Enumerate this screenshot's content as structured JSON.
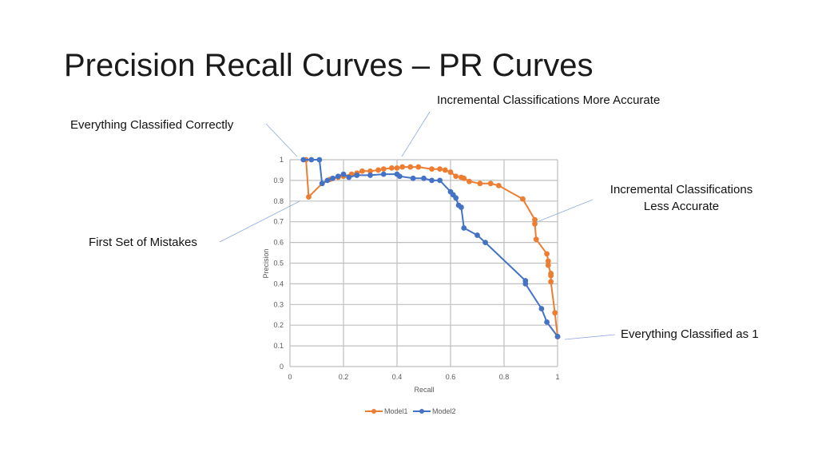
{
  "slide": {
    "title": "Precision Recall Curves – PR Curves"
  },
  "annotations": {
    "top_center": "Incremental Classifications More Accurate",
    "top_left": "Everything Classified Correctly",
    "right_line1": "Incremental Classifications",
    "right_line2": "Less Accurate",
    "left_mid": "First Set of Mistakes",
    "bottom_right": "Everything Classified as 1"
  },
  "colors": {
    "model1": "#ED7D31",
    "model2": "#4472C4",
    "grid": "#BFBFBF",
    "callout": "#8EA9DB"
  },
  "chart_data": {
    "type": "line",
    "title": "",
    "xlabel": "Recall",
    "ylabel": "Precision",
    "xlim": [
      0,
      1
    ],
    "ylim": [
      0,
      1
    ],
    "xticks": [
      "0",
      "0.2",
      "0.4",
      "0.6",
      "0.8",
      "1"
    ],
    "yticks": [
      "0",
      "0.1",
      "0.2",
      "0.3",
      "0.4",
      "0.5",
      "0.6",
      "0.7",
      "0.8",
      "0.9",
      "1"
    ],
    "grid": true,
    "legend_position": "bottom",
    "series": [
      {
        "name": "Model1",
        "color": "#ED7D31",
        "x": [
          0.06,
          0.07,
          0.12,
          0.15,
          0.18,
          0.2,
          0.23,
          0.25,
          0.27,
          0.3,
          0.33,
          0.35,
          0.38,
          0.4,
          0.42,
          0.45,
          0.48,
          0.53,
          0.56,
          0.58,
          0.6,
          0.62,
          0.64,
          0.65,
          0.67,
          0.71,
          0.75,
          0.78,
          0.87,
          0.915,
          0.915,
          0.92,
          0.96,
          0.965,
          0.965,
          0.975,
          0.975,
          0.975,
          0.99,
          1.0
        ],
        "y": [
          1.0,
          0.82,
          0.885,
          0.905,
          0.915,
          0.92,
          0.93,
          0.935,
          0.945,
          0.945,
          0.95,
          0.955,
          0.96,
          0.96,
          0.965,
          0.965,
          0.965,
          0.955,
          0.955,
          0.95,
          0.94,
          0.92,
          0.915,
          0.91,
          0.895,
          0.885,
          0.885,
          0.875,
          0.81,
          0.71,
          0.69,
          0.615,
          0.545,
          0.51,
          0.49,
          0.45,
          0.44,
          0.41,
          0.26,
          0.145
        ]
      },
      {
        "name": "Model2",
        "color": "#4472C4",
        "x": [
          0.05,
          0.08,
          0.11,
          0.12,
          0.14,
          0.16,
          0.18,
          0.2,
          0.22,
          0.25,
          0.3,
          0.35,
          0.4,
          0.41,
          0.46,
          0.5,
          0.53,
          0.56,
          0.6,
          0.61,
          0.62,
          0.63,
          0.64,
          0.65,
          0.7,
          0.73,
          0.88,
          0.88,
          0.94,
          0.96,
          1.0
        ],
        "y": [
          1.0,
          1.0,
          1.0,
          0.885,
          0.9,
          0.91,
          0.92,
          0.93,
          0.915,
          0.925,
          0.925,
          0.93,
          0.93,
          0.92,
          0.91,
          0.91,
          0.9,
          0.9,
          0.845,
          0.83,
          0.815,
          0.78,
          0.77,
          0.67,
          0.635,
          0.6,
          0.415,
          0.4,
          0.28,
          0.215,
          0.145
        ]
      }
    ]
  }
}
